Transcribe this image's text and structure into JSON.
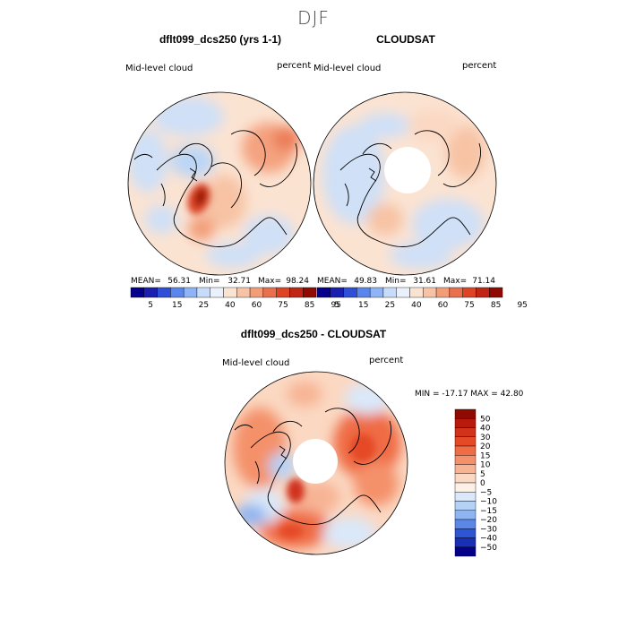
{
  "page_title": "DJF",
  "chart_data": [
    {
      "type": "heatmap",
      "projection": "north-polar-stereographic",
      "title": "dflt099_dcs250 (yrs 1-1)",
      "left_label": "Mid-level cloud",
      "right_label": "percent",
      "stats": {
        "mean_label": "MEAN=",
        "mean": "56.31",
        "min_label": "Min=",
        "min": "32.71",
        "max_label": "Max=",
        "max": "98.24"
      },
      "colorbar_levels": [
        "5",
        "15",
        "25",
        "40",
        "60",
        "75",
        "85",
        "95"
      ],
      "colorbar_colors": [
        "#04008c",
        "#1a1fb0",
        "#2e4fd8",
        "#5a86ec",
        "#8fb4f5",
        "#c6dcfa",
        "#eaf1fb",
        "#fbe3d2",
        "#f7c3a4",
        "#f29d78",
        "#ea6f4c",
        "#dc4425",
        "#c12514",
        "#8f0a03"
      ]
    },
    {
      "type": "heatmap",
      "projection": "north-polar-stereographic",
      "title": "CLOUDSAT",
      "left_label": "Mid-level cloud",
      "right_label": "percent",
      "stats": {
        "mean_label": "MEAN=",
        "mean": "49.83",
        "min_label": "Min=",
        "min": "31.61",
        "max_label": "Max=",
        "max": "71.14"
      },
      "colorbar_levels": [
        "5",
        "15",
        "25",
        "40",
        "60",
        "75",
        "85",
        "95"
      ],
      "colorbar_colors": [
        "#04008c",
        "#1a1fb0",
        "#2e4fd8",
        "#5a86ec",
        "#8fb4f5",
        "#c6dcfa",
        "#eaf1fb",
        "#fbe3d2",
        "#f7c3a4",
        "#f29d78",
        "#ea6f4c",
        "#dc4425",
        "#c12514",
        "#8f0a03"
      ]
    },
    {
      "type": "heatmap",
      "projection": "north-polar-stereographic",
      "title": "dflt099_dcs250 - CLOUDSAT",
      "left_label": "Mid-level cloud",
      "right_label": "percent",
      "minmax_text": "MIN = -17.17 MAX =  42.80",
      "colorbar_levels": [
        "50",
        "40",
        "30",
        "20",
        "15",
        "10",
        "5",
        "0",
        "−5",
        "−10",
        "−15",
        "−20",
        "−30",
        "−40",
        "−50"
      ],
      "colorbar_colors": [
        "#8f0a03",
        "#b81b0b",
        "#d0321a",
        "#e54a26",
        "#ef6c45",
        "#f4916b",
        "#f7b494",
        "#fbd8c2",
        "#fdf0e6",
        "#dae8f9",
        "#b5d2f5",
        "#8fb4f0",
        "#5b88e6",
        "#2e55d4",
        "#1a2fb8",
        "#05008a"
      ]
    }
  ]
}
